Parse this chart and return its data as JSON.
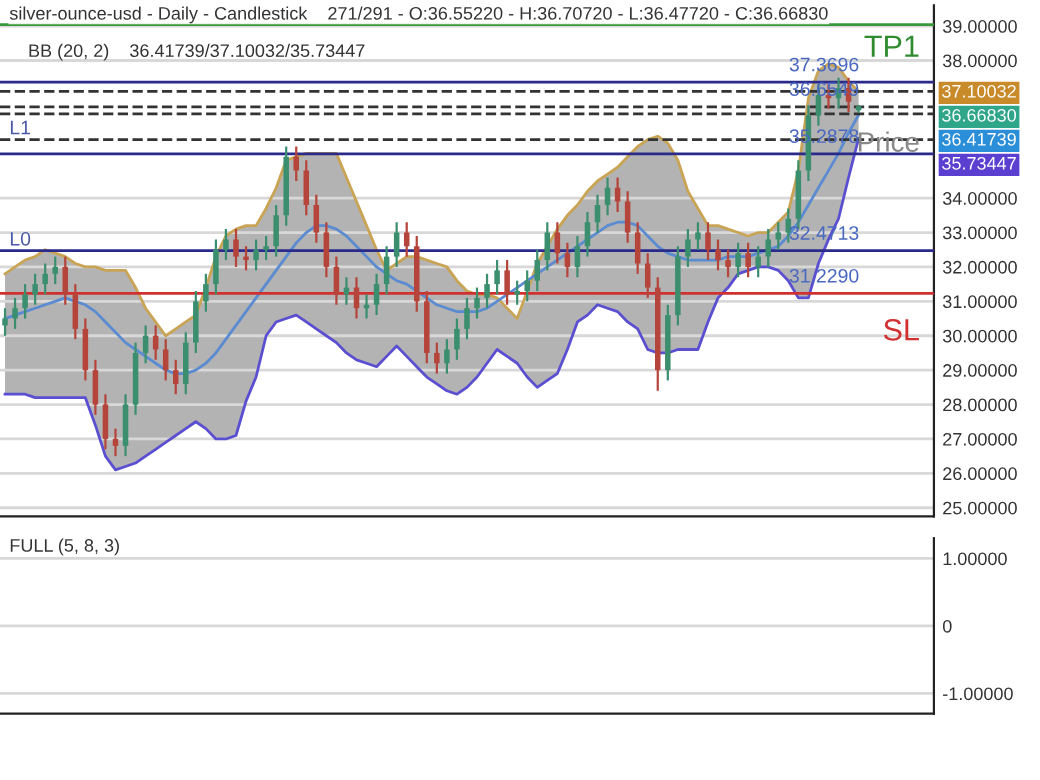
{
  "chart_data": [
    {
      "type": "candlestick",
      "title": "silver-ounce-usd - Daily - Candlestick    271/291 - O:36.55220 - H:36.70720 - L:36.47720 - C:36.66830",
      "subtitle": "BB (20, 2)    36.41739/37.10032/35.73447",
      "categories": [
        null,
        null,
        null,
        null,
        null,
        null,
        null,
        null,
        null,
        null,
        null,
        null,
        null,
        null,
        null,
        null,
        null,
        null,
        null,
        null,
        null,
        null,
        null,
        null,
        null,
        null,
        null,
        null,
        null,
        null,
        null,
        null,
        null,
        null,
        null,
        null,
        null,
        null,
        null,
        null,
        null,
        null,
        null,
        null,
        null,
        null,
        null,
        null,
        null,
        null,
        null,
        null,
        null,
        null,
        null,
        null,
        null,
        null,
        null,
        null,
        null,
        null,
        null,
        null,
        null,
        null,
        null,
        null,
        null,
        null,
        null,
        null,
        null,
        null,
        null,
        null,
        null,
        null,
        null,
        null,
        null,
        null,
        null,
        null,
        null,
        null
      ],
      "ohlc": [
        [
          30.3,
          30.8,
          30.0,
          30.5
        ],
        [
          30.5,
          31.1,
          30.2,
          30.8
        ],
        [
          30.8,
          31.5,
          30.5,
          31.2
        ],
        [
          31.2,
          31.8,
          30.9,
          31.5
        ],
        [
          31.5,
          32.1,
          31.2,
          31.8
        ],
        [
          31.8,
          32.3,
          31.5,
          32.0
        ],
        [
          32.0,
          32.3,
          30.9,
          31.2
        ],
        [
          31.2,
          31.5,
          29.9,
          30.2
        ],
        [
          30.2,
          30.5,
          28.7,
          29.0
        ],
        [
          29.0,
          29.3,
          27.7,
          28.0
        ],
        [
          28.0,
          28.3,
          26.7,
          27.0
        ],
        [
          27.0,
          27.3,
          26.5,
          26.8
        ],
        [
          26.8,
          28.3,
          26.5,
          28.0
        ],
        [
          28.0,
          29.8,
          27.7,
          29.5
        ],
        [
          29.5,
          30.3,
          29.2,
          30.0
        ],
        [
          30.0,
          30.3,
          29.3,
          29.6
        ],
        [
          29.6,
          29.9,
          28.7,
          29.0
        ],
        [
          29.0,
          29.3,
          28.3,
          28.6
        ],
        [
          28.6,
          30.1,
          28.3,
          29.8
        ],
        [
          29.8,
          31.3,
          29.5,
          31.0
        ],
        [
          31.0,
          31.8,
          30.7,
          31.5
        ],
        [
          31.5,
          32.8,
          31.2,
          32.5
        ],
        [
          32.5,
          33.1,
          32.2,
          32.8
        ],
        [
          32.8,
          33.1,
          32.0,
          32.3
        ],
        [
          32.3,
          32.6,
          31.9,
          32.2
        ],
        [
          32.2,
          32.8,
          31.9,
          32.5
        ],
        [
          32.5,
          32.9,
          32.2,
          32.6
        ],
        [
          32.6,
          33.8,
          32.3,
          33.5
        ],
        [
          33.5,
          35.5,
          33.2,
          35.2
        ],
        [
          35.2,
          35.5,
          34.5,
          34.8
        ],
        [
          34.8,
          35.1,
          33.5,
          33.8
        ],
        [
          33.8,
          34.1,
          32.7,
          33.0
        ],
        [
          33.0,
          33.3,
          31.7,
          32.0
        ],
        [
          32.0,
          32.3,
          30.9,
          31.2
        ],
        [
          31.2,
          31.7,
          30.9,
          31.4
        ],
        [
          31.4,
          31.7,
          30.5,
          30.8
        ],
        [
          30.8,
          31.2,
          30.5,
          30.9
        ],
        [
          30.9,
          31.8,
          30.6,
          31.5
        ],
        [
          31.5,
          32.6,
          31.2,
          32.3
        ],
        [
          32.3,
          33.3,
          32.0,
          33.0
        ],
        [
          33.0,
          33.3,
          32.3,
          32.6
        ],
        [
          32.6,
          32.9,
          30.7,
          31.0
        ],
        [
          31.0,
          31.3,
          29.2,
          29.5
        ],
        [
          29.5,
          29.8,
          28.9,
          29.2
        ],
        [
          29.2,
          29.9,
          28.9,
          29.6
        ],
        [
          29.6,
          30.5,
          29.3,
          30.2
        ],
        [
          30.2,
          31.1,
          29.9,
          30.8
        ],
        [
          30.8,
          31.4,
          30.5,
          31.1
        ],
        [
          31.1,
          31.8,
          30.8,
          31.5
        ],
        [
          31.5,
          32.2,
          31.2,
          31.9
        ],
        [
          31.9,
          32.2,
          30.9,
          31.2
        ],
        [
          31.2,
          31.6,
          30.9,
          31.3
        ],
        [
          31.3,
          31.9,
          31.0,
          31.6
        ],
        [
          31.6,
          32.5,
          31.3,
          32.2
        ],
        [
          32.2,
          33.3,
          31.9,
          33.0
        ],
        [
          33.0,
          33.3,
          32.1,
          32.4
        ],
        [
          32.4,
          32.7,
          31.7,
          32.0
        ],
        [
          32.0,
          32.9,
          31.7,
          32.6
        ],
        [
          32.6,
          33.6,
          32.3,
          33.3
        ],
        [
          33.3,
          34.1,
          33.0,
          33.8
        ],
        [
          33.8,
          34.6,
          33.5,
          34.3
        ],
        [
          34.3,
          34.6,
          33.6,
          33.9
        ],
        [
          33.9,
          34.2,
          32.7,
          33.0
        ],
        [
          33.0,
          33.3,
          31.8,
          32.1
        ],
        [
          32.1,
          32.4,
          31.1,
          31.4
        ],
        [
          31.4,
          31.7,
          28.4,
          29.0
        ],
        [
          29.0,
          30.9,
          28.7,
          30.6
        ],
        [
          30.6,
          32.6,
          30.3,
          32.3
        ],
        [
          32.3,
          33.1,
          32.0,
          32.8
        ],
        [
          32.8,
          33.3,
          32.5,
          33.0
        ],
        [
          33.0,
          33.3,
          32.2,
          32.5
        ],
        [
          32.5,
          32.8,
          31.9,
          32.2
        ],
        [
          32.2,
          32.5,
          31.7,
          32.0
        ],
        [
          32.0,
          32.7,
          31.7,
          32.4
        ],
        [
          32.4,
          32.7,
          31.7,
          32.0
        ],
        [
          32.0,
          32.6,
          31.7,
          32.3
        ],
        [
          32.3,
          33.1,
          32.0,
          32.8
        ],
        [
          32.8,
          33.3,
          32.5,
          33.0
        ],
        [
          33.0,
          33.7,
          32.7,
          33.4
        ],
        [
          33.4,
          35.1,
          33.1,
          34.8
        ],
        [
          34.8,
          36.7,
          34.5,
          36.4
        ],
        [
          36.4,
          37.3,
          36.1,
          37.0
        ],
        [
          37.0,
          37.3,
          36.6,
          36.9
        ],
        [
          36.9,
          37.5,
          36.6,
          37.2
        ],
        [
          37.2,
          37.5,
          36.5,
          36.8
        ],
        [
          36.5522,
          36.7072,
          36.4772,
          36.6683
        ]
      ],
      "colors": [
        "#3b8f6e",
        "#3b8f6e",
        "#3b8f6e",
        "#3b8f6e",
        "#3b8f6e",
        "#3b8f6e",
        "#b5443b",
        "#b5443b",
        "#b5443b",
        "#b5443b",
        "#b5443b",
        "#b5443b",
        "#3b8f6e",
        "#3b8f6e",
        "#3b8f6e",
        "#b5443b",
        "#b5443b",
        "#b5443b",
        "#3b8f6e",
        "#3b8f6e",
        "#3b8f6e",
        "#3b8f6e",
        "#3b8f6e",
        "#b5443b",
        "#b5443b",
        "#3b8f6e",
        "#3b8f6e",
        "#3b8f6e",
        "#3b8f6e",
        "#b5443b",
        "#b5443b",
        "#b5443b",
        "#b5443b",
        "#b5443b",
        "#3b8f6e",
        "#b5443b",
        "#3b8f6e",
        "#3b8f6e",
        "#3b8f6e",
        "#3b8f6e",
        "#b5443b",
        "#b5443b",
        "#b5443b",
        "#b5443b",
        "#3b8f6e",
        "#3b8f6e",
        "#3b8f6e",
        "#3b8f6e",
        "#3b8f6e",
        "#3b8f6e",
        "#b5443b",
        "#3b8f6e",
        "#3b8f6e",
        "#3b8f6e",
        "#3b8f6e",
        "#b5443b",
        "#b5443b",
        "#3b8f6e",
        "#3b8f6e",
        "#3b8f6e",
        "#3b8f6e",
        "#b5443b",
        "#b5443b",
        "#b5443b",
        "#b5443b",
        "#b5443b",
        "#3b8f6e",
        "#3b8f6e",
        "#3b8f6e",
        "#3b8f6e",
        "#b5443b",
        "#b5443b",
        "#b5443b",
        "#3b8f6e",
        "#b5443b",
        "#3b8f6e",
        "#3b8f6e",
        "#3b8f6e",
        "#3b8f6e",
        "#3b8f6e",
        "#3b8f6e",
        "#3b8f6e",
        "#b5443b",
        "#3b8f6e",
        "#b5443b",
        "#3b8f6e"
      ],
      "series": [
        {
          "type": "line",
          "color": "#c9a455",
          "values": [
            31.8,
            32.0,
            32.2,
            32.3,
            32.5,
            32.4,
            32.3,
            32.1,
            32.0,
            32.0,
            31.9,
            31.9,
            31.9,
            31.4,
            30.8,
            30.4,
            30.0,
            30.2,
            30.4,
            30.6,
            31.4,
            32.3,
            32.9,
            33.1,
            33.2,
            33.2,
            33.7,
            34.3,
            35.1,
            35.2,
            35.3,
            35.3,
            35.3,
            35.3,
            34.6,
            33.9,
            33.2,
            32.5,
            31.9,
            32.1,
            32.3,
            32.3,
            32.2,
            32.1,
            32.0,
            31.6,
            31.3,
            31.2,
            31.2,
            31.1,
            30.8,
            30.5,
            31.3,
            32.1,
            32.6,
            33.1,
            33.5,
            33.8,
            34.2,
            34.5,
            34.7,
            34.9,
            35.2,
            35.5,
            35.7,
            35.8,
            35.6,
            35.1,
            34.2,
            33.7,
            33.2,
            33.2,
            33.1,
            33.0,
            32.9,
            33.0,
            33.0,
            33.3,
            33.6,
            34.8,
            36.9,
            37.7,
            37.9,
            37.8,
            37.4,
            37.10032
          ]
        },
        {
          "type": "line",
          "color": "#5a4fd0",
          "values": [
            28.3,
            28.3,
            28.3,
            28.2,
            28.2,
            28.2,
            28.2,
            28.2,
            28.2,
            27.4,
            26.5,
            26.1,
            26.2,
            26.3,
            26.5,
            26.7,
            26.9,
            27.1,
            27.3,
            27.5,
            27.3,
            27.0,
            27.0,
            27.1,
            28.1,
            28.8,
            30.0,
            30.4,
            30.5,
            30.6,
            30.4,
            30.2,
            30.0,
            29.8,
            29.5,
            29.3,
            29.2,
            29.1,
            29.4,
            29.7,
            29.4,
            29.1,
            28.8,
            28.6,
            28.4,
            28.3,
            28.5,
            28.8,
            29.2,
            29.6,
            29.4,
            29.2,
            28.8,
            28.5,
            28.7,
            28.9,
            29.6,
            30.4,
            30.6,
            30.9,
            30.8,
            30.7,
            30.4,
            30.2,
            29.6,
            29.5,
            29.5,
            29.6,
            29.6,
            29.6,
            30.4,
            31.1,
            31.4,
            31.8,
            31.9,
            32.0,
            32.0,
            31.9,
            31.6,
            31.1,
            31.1,
            32.1,
            32.8,
            33.4,
            34.6,
            35.73447
          ]
        },
        {
          "type": "line",
          "color": "#5b8bd0",
          "values": [
            30.5,
            30.6,
            30.7,
            30.8,
            30.9,
            31.0,
            31.1,
            31.0,
            30.9,
            30.7,
            30.4,
            30.1,
            29.8,
            29.6,
            29.4,
            29.2,
            29.0,
            28.9,
            28.9,
            29.0,
            29.2,
            29.5,
            29.9,
            30.3,
            30.7,
            31.1,
            31.5,
            31.9,
            32.3,
            32.7,
            33.0,
            33.2,
            33.2,
            33.1,
            32.9,
            32.6,
            32.3,
            32.0,
            31.8,
            31.6,
            31.5,
            31.3,
            31.1,
            30.9,
            30.8,
            30.7,
            30.7,
            30.7,
            30.8,
            31.0,
            31.2,
            31.4,
            31.6,
            31.8,
            32.0,
            32.2,
            32.4,
            32.6,
            32.8,
            33.0,
            33.2,
            33.3,
            33.3,
            33.2,
            32.9,
            32.6,
            32.4,
            32.3,
            32.2,
            32.2,
            32.2,
            32.2,
            32.3,
            32.3,
            32.3,
            32.4,
            32.5,
            32.6,
            32.9,
            33.3,
            33.8,
            34.3,
            34.8,
            35.3,
            35.9,
            36.41739
          ],
          "upper": [
            31.8,
            32.0,
            32.2,
            32.3,
            32.5,
            32.4,
            32.3,
            32.1,
            32.0,
            32.0,
            31.9,
            31.9,
            31.9,
            31.4,
            30.8,
            30.4,
            30.0,
            30.2,
            30.4,
            30.6,
            31.4,
            32.3,
            32.9,
            33.1,
            33.2,
            33.2,
            33.7,
            34.3,
            35.1,
            35.2,
            35.3,
            35.3,
            35.3,
            35.3,
            34.6,
            33.9,
            33.2,
            32.5,
            31.9,
            32.1,
            32.3,
            32.3,
            32.2,
            32.1,
            32.0,
            31.6,
            31.3,
            31.2,
            31.2,
            31.1,
            30.8,
            30.5,
            31.3,
            32.1,
            32.6,
            33.1,
            33.5,
            33.8,
            34.2,
            34.5,
            34.7,
            34.9,
            35.2,
            35.5,
            35.7,
            35.8,
            35.6,
            35.1,
            34.2,
            33.7,
            33.2,
            33.2,
            33.1,
            33.0,
            32.9,
            33.0,
            33.0,
            33.3,
            33.6,
            34.8,
            36.9,
            37.7,
            37.9,
            37.8,
            37.4,
            37.10032
          ],
          "lower": [
            28.3,
            28.3,
            28.3,
            28.2,
            28.2,
            28.2,
            28.2,
            28.2,
            28.2,
            27.4,
            26.5,
            26.1,
            26.2,
            26.3,
            26.5,
            26.7,
            26.9,
            27.1,
            27.3,
            27.5,
            27.3,
            27.0,
            27.0,
            27.1,
            28.1,
            28.8,
            30.0,
            30.4,
            30.5,
            30.6,
            30.4,
            30.2,
            30.0,
            29.8,
            29.5,
            29.3,
            29.2,
            29.1,
            29.4,
            29.7,
            29.4,
            29.1,
            28.8,
            28.6,
            28.4,
            28.3,
            28.5,
            28.8,
            29.2,
            29.6,
            29.4,
            29.2,
            28.8,
            28.5,
            28.7,
            28.9,
            29.6,
            30.4,
            30.6,
            30.9,
            30.8,
            30.7,
            30.4,
            30.2,
            29.6,
            29.5,
            29.5,
            29.6,
            29.6,
            29.6,
            30.4,
            31.1,
            31.4,
            31.8,
            31.9,
            32.0,
            32.0,
            31.9,
            31.6,
            31.1,
            31.1,
            32.1,
            32.8,
            33.4,
            34.6,
            35.73447
          ]
        }
      ],
      "ylim": [
        24.75,
        39.6
      ],
      "yticks": [
        {
          "value": 25,
          "label": "25.00000"
        },
        {
          "value": 26,
          "label": "26.00000"
        },
        {
          "value": 27,
          "label": "27.00000"
        },
        {
          "value": 28,
          "label": "28.00000"
        },
        {
          "value": 29,
          "label": "29.00000"
        },
        {
          "value": 30,
          "label": "30.00000"
        },
        {
          "value": 31,
          "label": "31.00000"
        },
        {
          "value": 32,
          "label": "32.00000"
        },
        {
          "value": 33,
          "label": "33.00000"
        },
        {
          "value": 34,
          "label": "34.00000"
        },
        {
          "value": 38,
          "label": "38.00000"
        },
        {
          "value": 39,
          "label": "39.00000"
        }
      ],
      "ref_lines": [
        {
          "axis": "y",
          "value": 39.04,
          "color": "#3a9a3a",
          "line_style": "solid"
        },
        {
          "axis": "y",
          "value": 37.3696,
          "color": "#2a2a8a",
          "line_style": "solid",
          "label": "37.3696"
        },
        {
          "axis": "y",
          "value": 37.1,
          "color": "#333333",
          "line_style": "dashed"
        },
        {
          "axis": "y",
          "value": 36.6549,
          "color": "#333333",
          "line_style": "dashed",
          "label": "36.6549"
        },
        {
          "axis": "y",
          "value": 36.45,
          "color": "#333333",
          "line_style": "dashed"
        },
        {
          "axis": "y",
          "value": 35.7,
          "color": "#333333",
          "line_style": "dashed"
        },
        {
          "axis": "y",
          "value": 35.2878,
          "color": "#2a2a8a",
          "line_style": "solid",
          "label": "35.2878"
        },
        {
          "axis": "y",
          "value": 32.4713,
          "color": "#2a2a8a",
          "line_style": "solid",
          "label": "32.4713"
        },
        {
          "axis": "y",
          "value": 31.229,
          "color": "#d03030",
          "line_style": "solid",
          "label": "31.2290"
        }
      ],
      "annotations": [
        "TP1",
        "L1",
        "Price",
        "L0",
        "SL",
        "37.10032",
        "36.66830",
        "36.41739",
        "35.73447"
      ],
      "grid": "y",
      "tick_labels": "y"
    },
    {
      "type": "line",
      "title": "FULL (5, 8, 3)",
      "categories": [
        null,
        null,
        null,
        null,
        null,
        null,
        null,
        null,
        null,
        null,
        null,
        null,
        null,
        null,
        null,
        null,
        null,
        null,
        null,
        null,
        null,
        null,
        null,
        null,
        null,
        null,
        null,
        null,
        null,
        null,
        null,
        null,
        null,
        null,
        null,
        null,
        null,
        null,
        null,
        null,
        null,
        null,
        null,
        null,
        null,
        null,
        null,
        null,
        null,
        null,
        null,
        null,
        null,
        null,
        null,
        null,
        null,
        null,
        null,
        null,
        null,
        null,
        null,
        null,
        null,
        null,
        null,
        null,
        null,
        null,
        null,
        null,
        null,
        null,
        null,
        null,
        null,
        null,
        null,
        null,
        null,
        null,
        null,
        null,
        null,
        null
      ],
      "series": [
        {
          "color": "#2a6fb0",
          "values": [
            null,
            null,
            null,
            null,
            null,
            null,
            null,
            null,
            null,
            null,
            null,
            null,
            null,
            null,
            null,
            null,
            null,
            null,
            null,
            null,
            null,
            null,
            null,
            null,
            null,
            null,
            null,
            null,
            null,
            null,
            null,
            null,
            null,
            null,
            null,
            null,
            null,
            null,
            null,
            null,
            null,
            null,
            null,
            null,
            null,
            null,
            null,
            null,
            null,
            null,
            null,
            null,
            null,
            null,
            null,
            null,
            null,
            null,
            null,
            null,
            null,
            null,
            null,
            null,
            null,
            null,
            null,
            null,
            null,
            null,
            null,
            null,
            null,
            null,
            null,
            null,
            null,
            null,
            null,
            null,
            null,
            null,
            null,
            null,
            null,
            null
          ]
        }
      ],
      "ylim": [
        -1.3,
        1.3
      ],
      "yticks": [
        {
          "value": 1,
          "label": "1.00000"
        },
        0,
        {
          "value": -1,
          "label": "-1.00000"
        }
      ],
      "grid": "y",
      "tick_labels": "y"
    }
  ]
}
